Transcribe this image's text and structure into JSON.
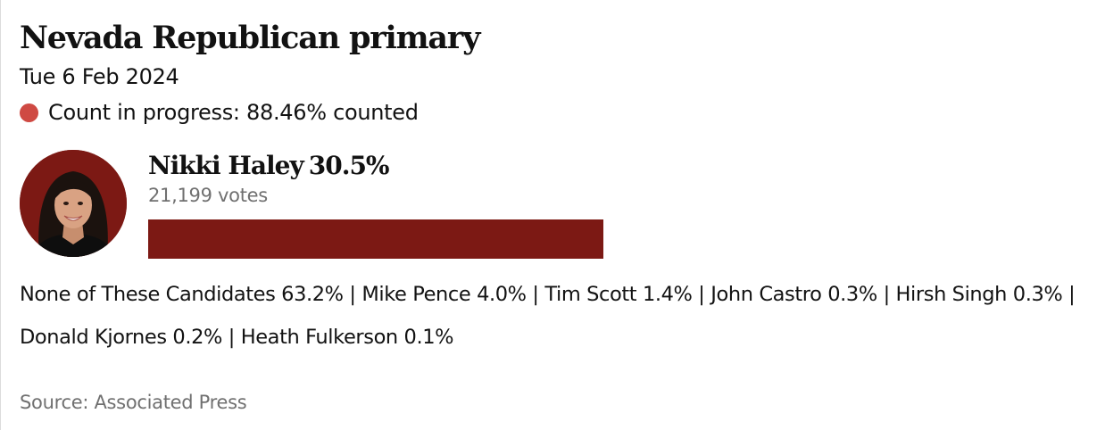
{
  "header": {
    "title": "Nevada Republican primary",
    "date": "Tue 6 Feb 2024",
    "status_text": "Count in progress: 88.46% counted",
    "status_color": "#cf4a43"
  },
  "leader": {
    "name": "Nikki Haley",
    "percent_label": "30.5%",
    "votes_label": "21,199 votes",
    "bar_fraction": 0.305,
    "bar_color": "#7c1914",
    "photo_icon": "candidate-portrait"
  },
  "others": {
    "separator": "|",
    "candidates": [
      {
        "text": "None of These Candidates 63.2%"
      },
      {
        "text": "Mike Pence 4.0%"
      },
      {
        "text": "Tim Scott 1.4%"
      },
      {
        "text": "John Castro 0.3%"
      },
      {
        "text": "Hirsh Singh 0.3%"
      },
      {
        "text": "Donald Kjornes 0.2%"
      },
      {
        "text": "Heath Fulkerson 0.1%"
      }
    ]
  },
  "footer": {
    "source": "Source: Associated Press"
  }
}
